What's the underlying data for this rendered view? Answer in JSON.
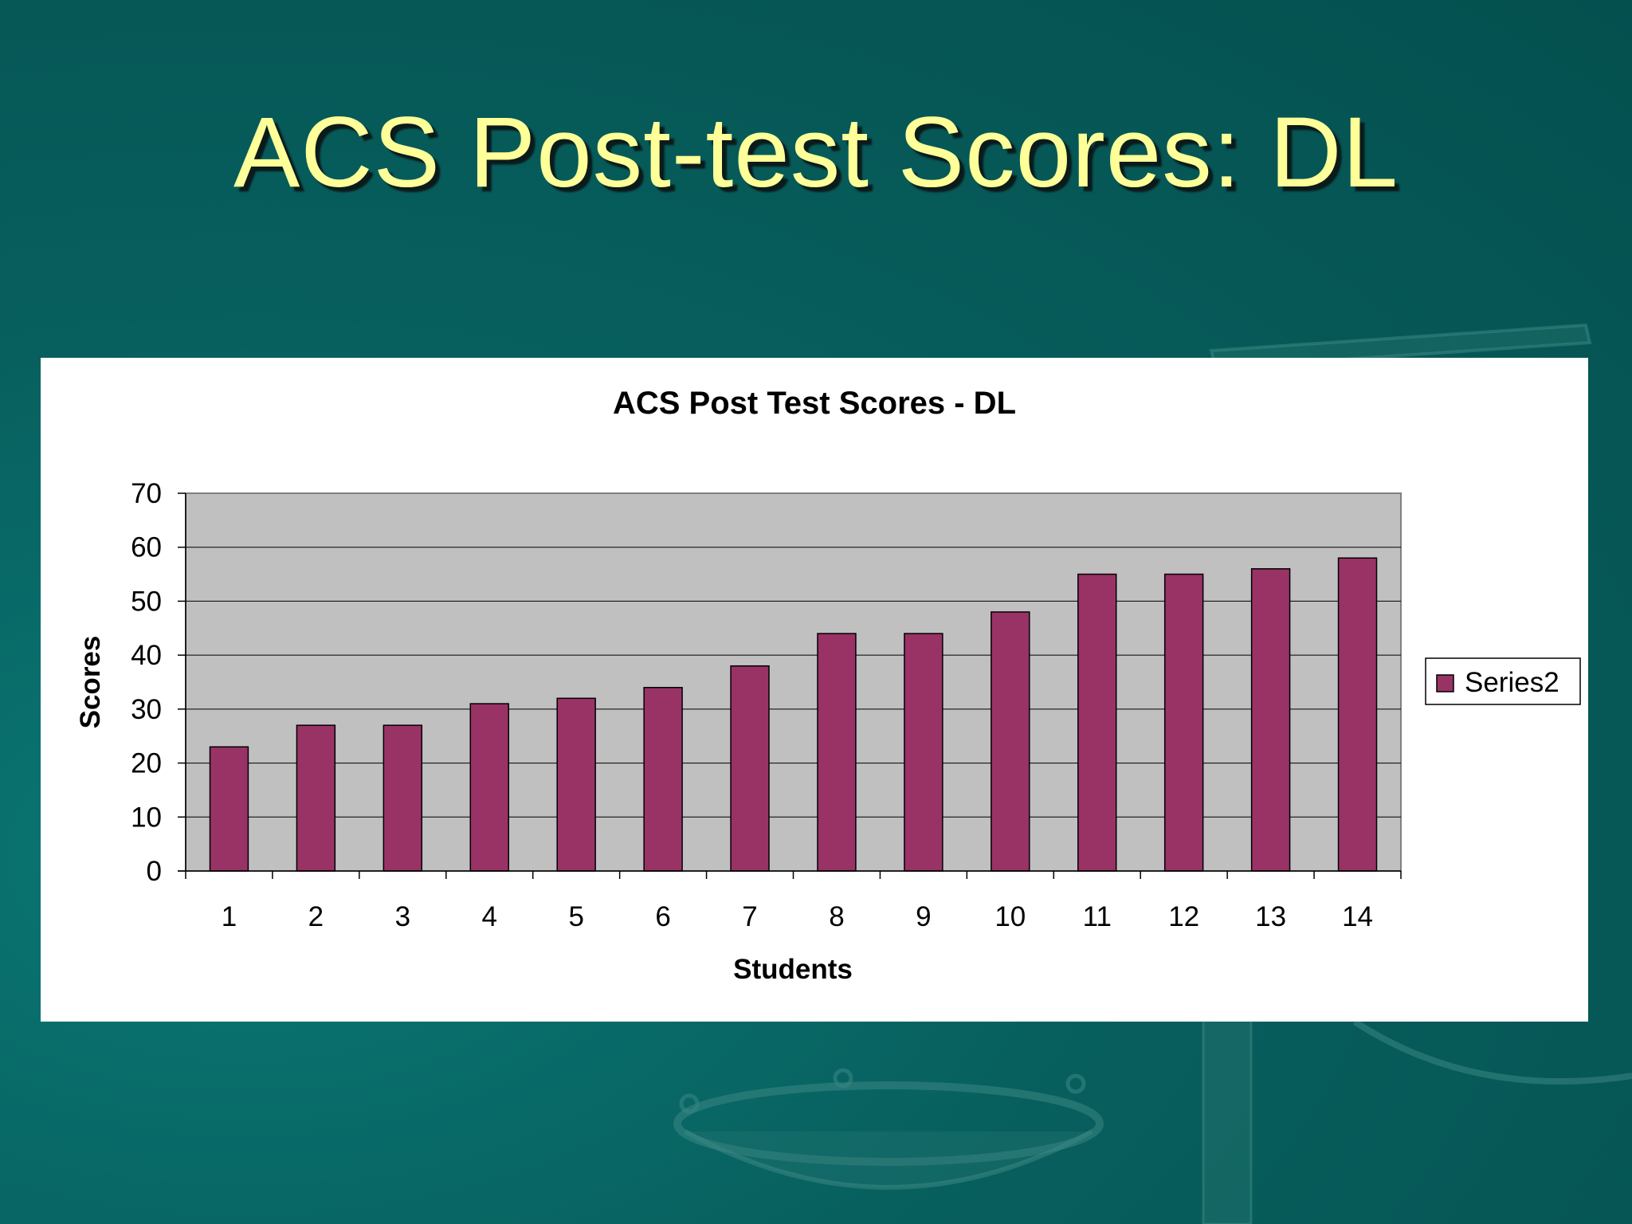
{
  "slide": {
    "title": "ACS Post-test Scores: DL"
  },
  "colors": {
    "background": "#065a58",
    "title": "#ffff99",
    "bar_fill": "#993366",
    "plot_area": "#c0c0c0"
  },
  "chart_data": {
    "type": "bar",
    "title": "ACS Post Test Scores - DL",
    "xlabel": "Students",
    "ylabel": "Scores",
    "categories": [
      "1",
      "2",
      "3",
      "4",
      "5",
      "6",
      "7",
      "8",
      "9",
      "10",
      "11",
      "12",
      "13",
      "14"
    ],
    "series": [
      {
        "name": "Series2",
        "values": [
          23,
          27,
          27,
          31,
          32,
          34,
          38,
          44,
          44,
          48,
          55,
          55,
          56,
          58
        ]
      }
    ],
    "ylim": [
      0,
      70
    ],
    "yticks": [
      0,
      10,
      20,
      30,
      40,
      50,
      60,
      70
    ],
    "grid": true,
    "legend": "right"
  }
}
